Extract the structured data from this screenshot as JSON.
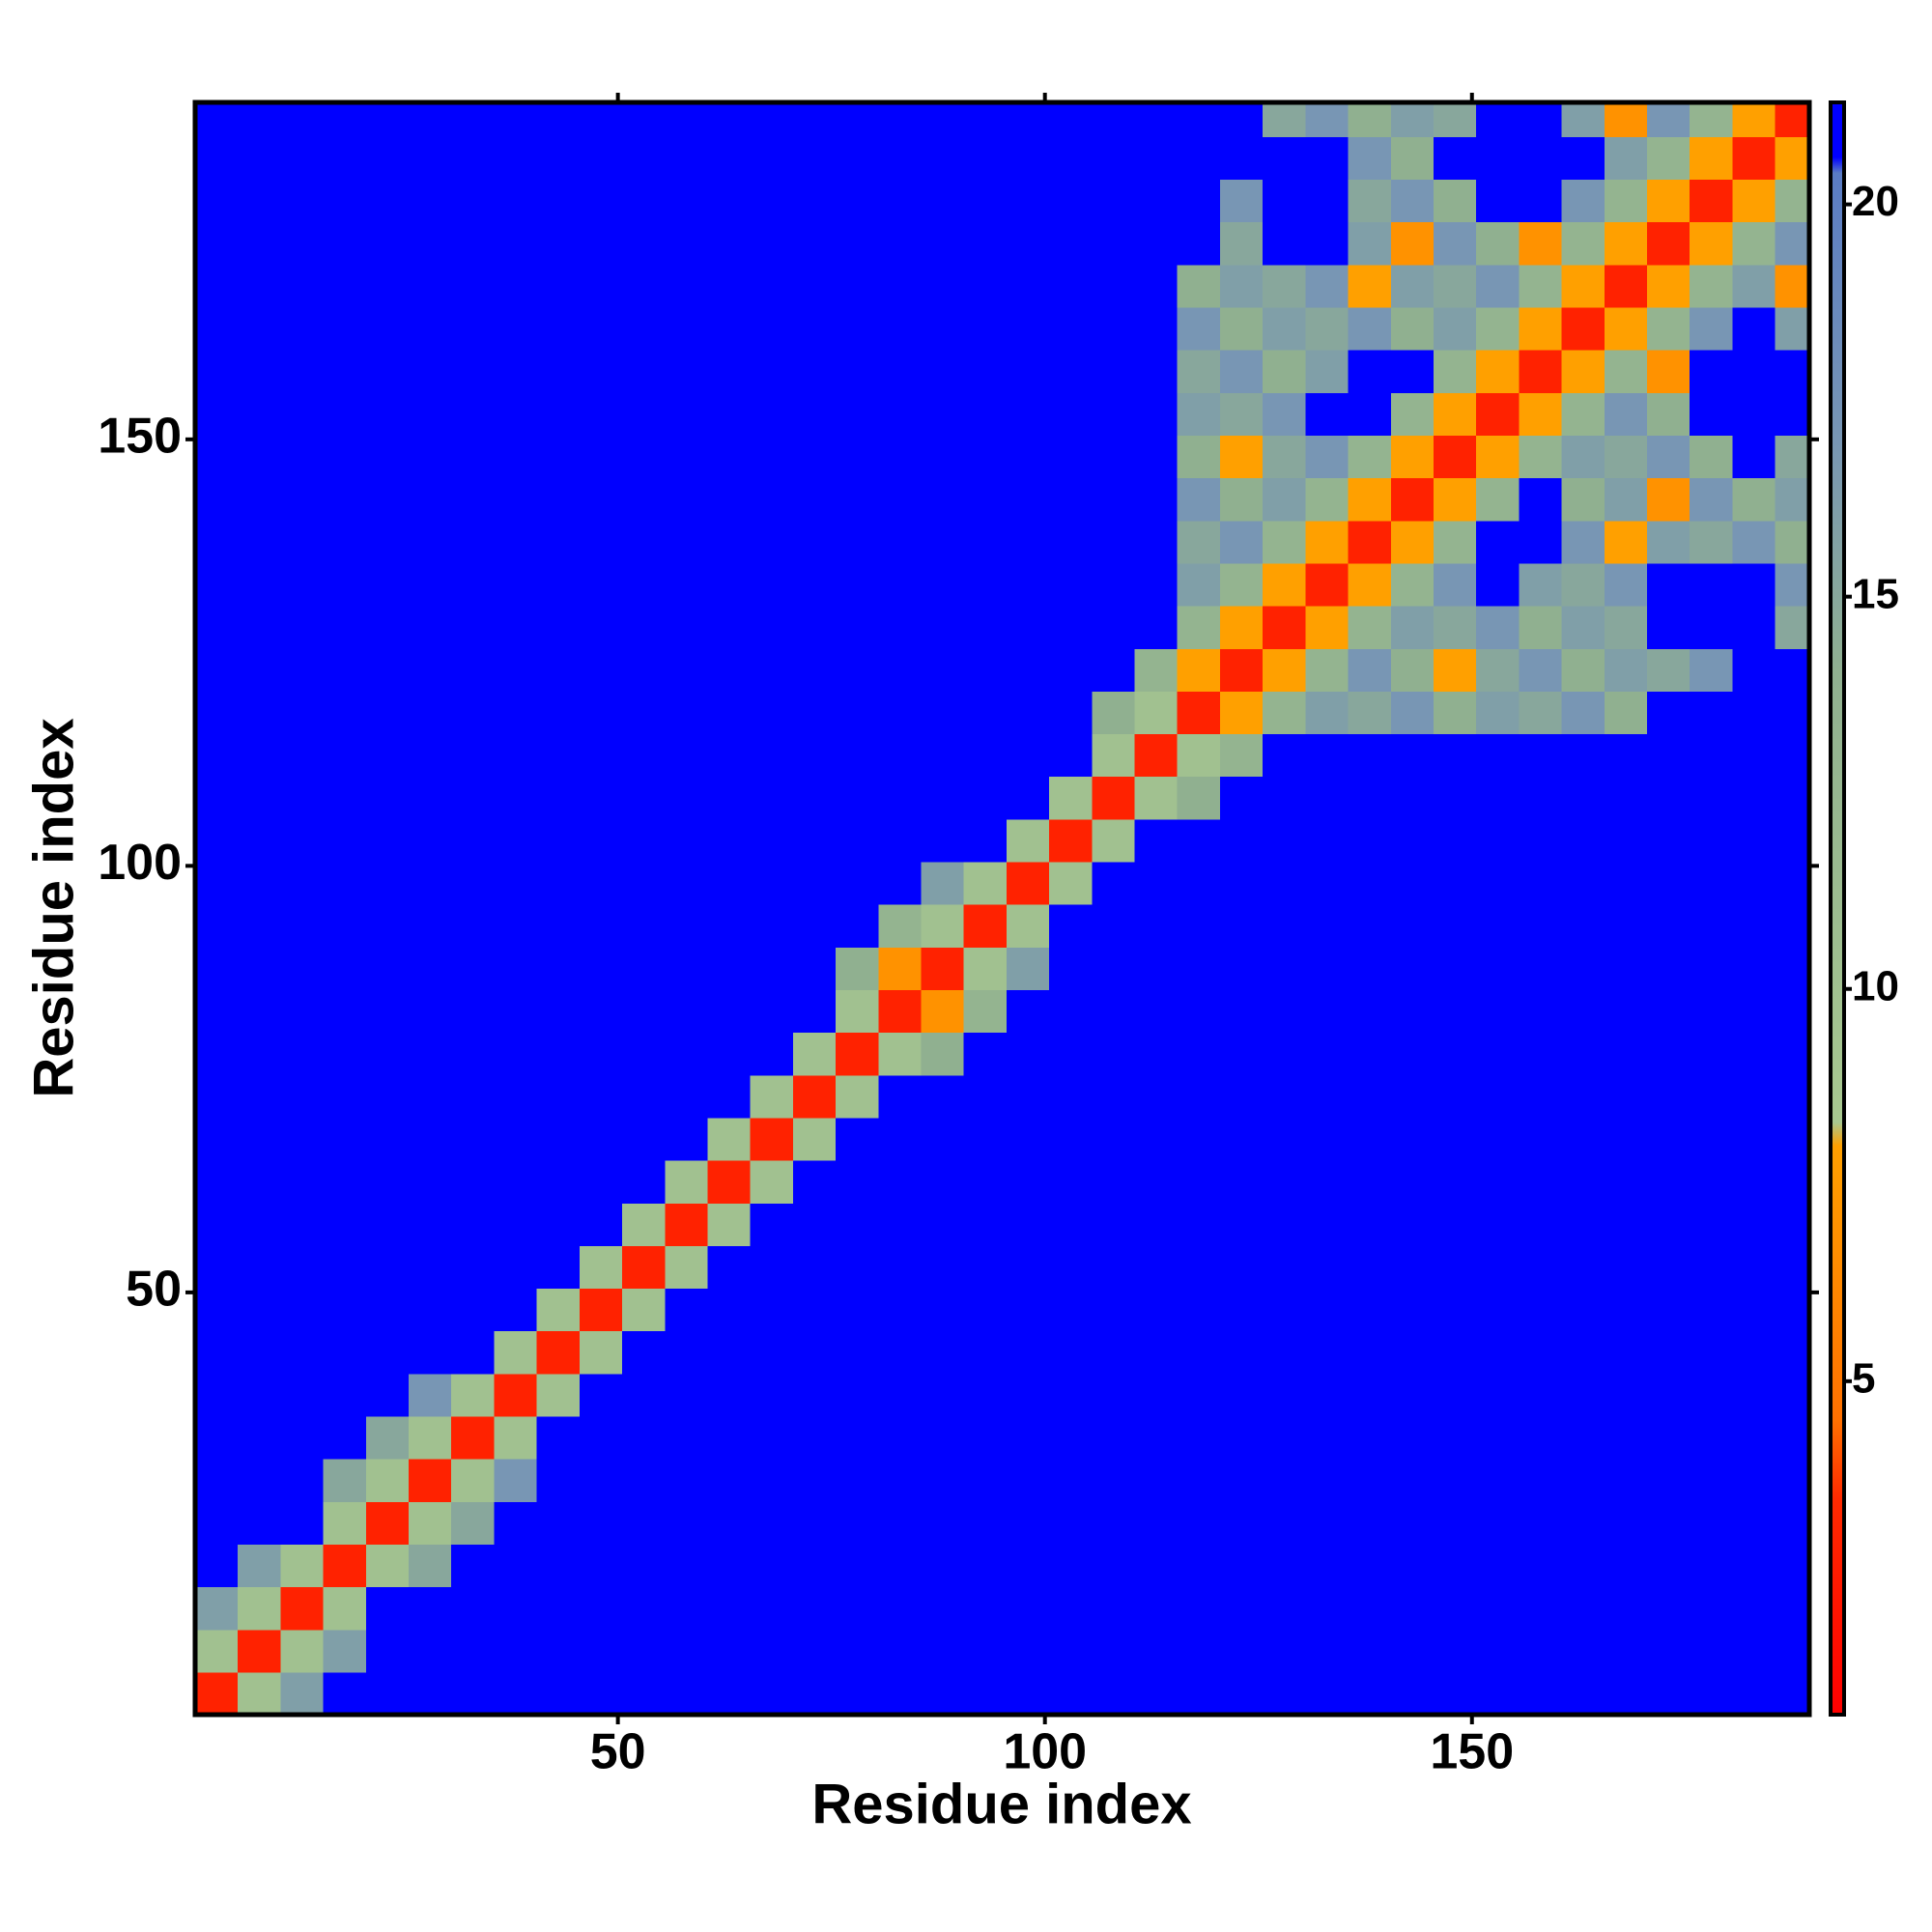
{
  "chart_data": {
    "type": "heatmap",
    "x_label": "Residue index",
    "y_label": "Residue index",
    "xlim": [
      0.5,
      189.5
    ],
    "ylim": [
      0.5,
      189.5
    ],
    "xticks": [
      50,
      100,
      150
    ],
    "yticks": [
      50,
      100,
      150
    ],
    "xbins": [
      0.5,
      5.5,
      10.5,
      15.5,
      20.5,
      25.5,
      30.5,
      35.5,
      40.5,
      45.5,
      50.5,
      55.5,
      60.5,
      65.5,
      70.5,
      75.5,
      80.5,
      85.5,
      90.5,
      95.5,
      100.5,
      105.5,
      110.5,
      115.5,
      120.5,
      125.5,
      130.5,
      135.5,
      140.5,
      145.5,
      150.5,
      155.5,
      160.5,
      165.5,
      170.5,
      175.5,
      180.5,
      185.5,
      189.5
    ],
    "ybins": [
      0.5,
      5.5,
      10.5,
      15.5,
      20.5,
      25.5,
      30.5,
      35.5,
      40.5,
      45.5,
      50.5,
      55.5,
      60.5,
      65.5,
      70.5,
      75.5,
      80.5,
      85.5,
      90.5,
      95.5,
      100.5,
      105.5,
      110.5,
      115.5,
      120.5,
      125.5,
      130.5,
      135.5,
      140.5,
      145.5,
      150.5,
      155.5,
      160.5,
      165.5,
      170.5,
      175.5,
      180.5,
      185.5,
      189.5
    ],
    "zlim": [
      0.75,
      21.3
    ],
    "zticks": [
      5,
      10,
      15,
      20
    ],
    "colorscale": [
      [
        0.75,
        "#ff0000"
      ],
      [
        3.5,
        "#ff2a00"
      ],
      [
        4.5,
        "#ff7000"
      ],
      [
        8,
        "#ffa000"
      ],
      [
        8.3,
        "#a8c890"
      ],
      [
        14,
        "#90b090"
      ],
      [
        17,
        "#7896b4"
      ],
      [
        20.4,
        "#5a7cc4"
      ],
      [
        20.6,
        "#0000ff"
      ],
      [
        21.3,
        "#0000ff"
      ]
    ],
    "values": [
      [
        3,
        10,
        16,
        21,
        21,
        21,
        21,
        21,
        21,
        21,
        21,
        21,
        21,
        21,
        21,
        21,
        21,
        21,
        21,
        21,
        21,
        21,
        21,
        21,
        21,
        21,
        21,
        21,
        21,
        21,
        21,
        21,
        21,
        21,
        21,
        21,
        21,
        21
      ],
      [
        10,
        3,
        10,
        16,
        21,
        21,
        21,
        21,
        21,
        21,
        21,
        21,
        21,
        21,
        21,
        21,
        21,
        21,
        21,
        21,
        21,
        21,
        21,
        21,
        21,
        21,
        21,
        21,
        21,
        21,
        21,
        21,
        21,
        21,
        21,
        21,
        21,
        21
      ],
      [
        16,
        10,
        3,
        10,
        21,
        21,
        21,
        21,
        21,
        21,
        21,
        21,
        21,
        21,
        21,
        21,
        21,
        21,
        21,
        21,
        21,
        21,
        21,
        21,
        21,
        21,
        21,
        21,
        21,
        21,
        21,
        21,
        21,
        21,
        21,
        21,
        21,
        21
      ],
      [
        21,
        16,
        10,
        3,
        10,
        15,
        21,
        21,
        21,
        21,
        21,
        21,
        21,
        21,
        21,
        21,
        21,
        21,
        21,
        21,
        21,
        21,
        21,
        21,
        21,
        21,
        21,
        21,
        21,
        21,
        21,
        21,
        21,
        21,
        21,
        21,
        21,
        21
      ],
      [
        21,
        21,
        21,
        10,
        3,
        10,
        15,
        21,
        21,
        21,
        21,
        21,
        21,
        21,
        21,
        21,
        21,
        21,
        21,
        21,
        21,
        21,
        21,
        21,
        21,
        21,
        21,
        21,
        21,
        21,
        21,
        21,
        21,
        21,
        21,
        21,
        21,
        21
      ],
      [
        21,
        21,
        21,
        15,
        10,
        3,
        10,
        17,
        21,
        21,
        21,
        21,
        21,
        21,
        21,
        21,
        21,
        21,
        21,
        21,
        21,
        21,
        21,
        21,
        21,
        21,
        21,
        21,
        21,
        21,
        21,
        21,
        21,
        21,
        21,
        21,
        21,
        21
      ],
      [
        21,
        21,
        21,
        21,
        15,
        10,
        3,
        10,
        21,
        21,
        21,
        21,
        21,
        21,
        21,
        21,
        21,
        21,
        21,
        21,
        21,
        21,
        21,
        21,
        21,
        21,
        21,
        21,
        21,
        21,
        21,
        21,
        21,
        21,
        21,
        21,
        21,
        21
      ],
      [
        21,
        21,
        21,
        21,
        21,
        17,
        10,
        3,
        10,
        21,
        21,
        21,
        21,
        21,
        21,
        21,
        21,
        21,
        21,
        21,
        21,
        21,
        21,
        21,
        21,
        21,
        21,
        21,
        21,
        21,
        21,
        21,
        21,
        21,
        21,
        21,
        21,
        21
      ],
      [
        21,
        21,
        21,
        21,
        21,
        21,
        21,
        10,
        3,
        10,
        21,
        21,
        21,
        21,
        21,
        21,
        21,
        21,
        21,
        21,
        21,
        21,
        21,
        21,
        21,
        21,
        21,
        21,
        21,
        21,
        21,
        21,
        21,
        21,
        21,
        21,
        21,
        21
      ],
      [
        21,
        21,
        21,
        21,
        21,
        21,
        21,
        21,
        10,
        3,
        10,
        21,
        21,
        21,
        21,
        21,
        21,
        21,
        21,
        21,
        21,
        21,
        21,
        21,
        21,
        21,
        21,
        21,
        21,
        21,
        21,
        21,
        21,
        21,
        21,
        21,
        21,
        21
      ],
      [
        21,
        21,
        21,
        21,
        21,
        21,
        21,
        21,
        21,
        10,
        3,
        10,
        21,
        21,
        21,
        21,
        21,
        21,
        21,
        21,
        21,
        21,
        21,
        21,
        21,
        21,
        21,
        21,
        21,
        21,
        21,
        21,
        21,
        21,
        21,
        21,
        21,
        21
      ],
      [
        21,
        21,
        21,
        21,
        21,
        21,
        21,
        21,
        21,
        21,
        10,
        3,
        10,
        21,
        21,
        21,
        21,
        21,
        21,
        21,
        21,
        21,
        21,
        21,
        21,
        21,
        21,
        21,
        21,
        21,
        21,
        21,
        21,
        21,
        21,
        21,
        21,
        21
      ],
      [
        21,
        21,
        21,
        21,
        21,
        21,
        21,
        21,
        21,
        21,
        21,
        10,
        3,
        10,
        21,
        21,
        21,
        21,
        21,
        21,
        21,
        21,
        21,
        21,
        21,
        21,
        21,
        21,
        21,
        21,
        21,
        21,
        21,
        21,
        21,
        21,
        21,
        21
      ],
      [
        21,
        21,
        21,
        21,
        21,
        21,
        21,
        21,
        21,
        21,
        21,
        21,
        10,
        3,
        10,
        21,
        21,
        21,
        21,
        21,
        21,
        21,
        21,
        21,
        21,
        21,
        21,
        21,
        21,
        21,
        21,
        21,
        21,
        21,
        21,
        21,
        21,
        21
      ],
      [
        21,
        21,
        21,
        21,
        21,
        21,
        21,
        21,
        21,
        21,
        21,
        21,
        21,
        10,
        3,
        10,
        21,
        21,
        21,
        21,
        21,
        21,
        21,
        21,
        21,
        21,
        21,
        21,
        21,
        21,
        21,
        21,
        21,
        21,
        21,
        21,
        21,
        21
      ],
      [
        21,
        21,
        21,
        21,
        21,
        21,
        21,
        21,
        21,
        21,
        21,
        21,
        21,
        21,
        10,
        3,
        10,
        14,
        21,
        21,
        21,
        21,
        21,
        21,
        21,
        21,
        21,
        21,
        21,
        21,
        21,
        21,
        21,
        21,
        21,
        21,
        21,
        21
      ],
      [
        21,
        21,
        21,
        21,
        21,
        21,
        21,
        21,
        21,
        21,
        21,
        21,
        21,
        21,
        21,
        10,
        3,
        7,
        13,
        21,
        21,
        21,
        21,
        21,
        21,
        21,
        21,
        21,
        21,
        21,
        21,
        21,
        21,
        21,
        21,
        21,
        21,
        21
      ],
      [
        21,
        21,
        21,
        21,
        21,
        21,
        21,
        21,
        21,
        21,
        21,
        21,
        21,
        21,
        21,
        14,
        7,
        3,
        10,
        16,
        21,
        21,
        21,
        21,
        21,
        21,
        21,
        21,
        21,
        21,
        21,
        21,
        21,
        21,
        21,
        21,
        21,
        21
      ],
      [
        21,
        21,
        21,
        21,
        21,
        21,
        21,
        21,
        21,
        21,
        21,
        21,
        21,
        21,
        21,
        21,
        13,
        10,
        3,
        10,
        21,
        21,
        21,
        21,
        21,
        21,
        21,
        21,
        21,
        21,
        21,
        21,
        21,
        21,
        21,
        21,
        21,
        21
      ],
      [
        21,
        21,
        21,
        21,
        21,
        21,
        21,
        21,
        21,
        21,
        21,
        21,
        21,
        21,
        21,
        21,
        21,
        16,
        10,
        3,
        10,
        21,
        21,
        21,
        21,
        21,
        21,
        21,
        21,
        21,
        21,
        21,
        21,
        21,
        21,
        21,
        21,
        21
      ],
      [
        21,
        21,
        21,
        21,
        21,
        21,
        21,
        21,
        21,
        21,
        21,
        21,
        21,
        21,
        21,
        21,
        21,
        21,
        21,
        10,
        3,
        10,
        21,
        21,
        21,
        21,
        21,
        21,
        21,
        21,
        21,
        21,
        21,
        21,
        21,
        21,
        21,
        21
      ],
      [
        21,
        21,
        21,
        21,
        21,
        21,
        21,
        21,
        21,
        21,
        21,
        21,
        21,
        21,
        21,
        21,
        21,
        21,
        21,
        21,
        10,
        3,
        10,
        14,
        21,
        21,
        21,
        21,
        21,
        21,
        21,
        21,
        21,
        21,
        21,
        21,
        21,
        21
      ],
      [
        21,
        21,
        21,
        21,
        21,
        21,
        21,
        21,
        21,
        21,
        21,
        21,
        21,
        21,
        21,
        21,
        21,
        21,
        21,
        21,
        21,
        10,
        3,
        10,
        13,
        21,
        21,
        21,
        21,
        21,
        21,
        21,
        21,
        21,
        21,
        21,
        21,
        21
      ],
      [
        21,
        21,
        21,
        21,
        21,
        21,
        21,
        21,
        21,
        21,
        21,
        21,
        21,
        21,
        21,
        21,
        21,
        21,
        21,
        21,
        21,
        14,
        10,
        3,
        8,
        13,
        16,
        15,
        17,
        14,
        16,
        15,
        17,
        14,
        21,
        21,
        21,
        21
      ],
      [
        21,
        21,
        21,
        21,
        21,
        21,
        21,
        21,
        21,
        21,
        21,
        21,
        21,
        21,
        21,
        21,
        21,
        21,
        21,
        21,
        21,
        21,
        13,
        8,
        3,
        8,
        13,
        17,
        14,
        8,
        15,
        17,
        14,
        16,
        15,
        17,
        21,
        21
      ],
      [
        21,
        21,
        21,
        21,
        21,
        21,
        21,
        21,
        21,
        21,
        21,
        21,
        21,
        21,
        21,
        21,
        21,
        21,
        21,
        21,
        21,
        21,
        21,
        13,
        8,
        3,
        8,
        13,
        16,
        15,
        17,
        14,
        16,
        15,
        21,
        21,
        21,
        15
      ],
      [
        21,
        21,
        21,
        21,
        21,
        21,
        21,
        21,
        21,
        21,
        21,
        21,
        21,
        21,
        21,
        21,
        21,
        21,
        21,
        21,
        21,
        21,
        21,
        16,
        13,
        8,
        3,
        8,
        13,
        17,
        21,
        16,
        15,
        17,
        21,
        21,
        21,
        17
      ],
      [
        21,
        21,
        21,
        21,
        21,
        21,
        21,
        21,
        21,
        21,
        21,
        21,
        21,
        21,
        21,
        21,
        21,
        21,
        21,
        21,
        21,
        21,
        21,
        15,
        17,
        13,
        8,
        3,
        8,
        13,
        21,
        21,
        17,
        8,
        16,
        15,
        17,
        14
      ],
      [
        21,
        21,
        21,
        21,
        21,
        21,
        21,
        21,
        21,
        21,
        21,
        21,
        21,
        21,
        21,
        21,
        21,
        21,
        21,
        21,
        21,
        21,
        21,
        17,
        14,
        16,
        13,
        8,
        3,
        8,
        13,
        21,
        14,
        16,
        7,
        17,
        14,
        16
      ],
      [
        21,
        21,
        21,
        21,
        21,
        21,
        21,
        21,
        21,
        21,
        21,
        21,
        21,
        21,
        21,
        21,
        21,
        21,
        21,
        21,
        21,
        21,
        21,
        14,
        8,
        15,
        17,
        13,
        8,
        3,
        8,
        13,
        16,
        15,
        17,
        14,
        21,
        15
      ],
      [
        21,
        21,
        21,
        21,
        21,
        21,
        21,
        21,
        21,
        21,
        21,
        21,
        21,
        21,
        21,
        21,
        21,
        21,
        21,
        21,
        21,
        21,
        21,
        16,
        15,
        17,
        21,
        21,
        13,
        8,
        3,
        8,
        13,
        17,
        14,
        21,
        21,
        21
      ],
      [
        21,
        21,
        21,
        21,
        21,
        21,
        21,
        21,
        21,
        21,
        21,
        21,
        21,
        21,
        21,
        21,
        21,
        21,
        21,
        21,
        21,
        21,
        21,
        15,
        17,
        14,
        16,
        21,
        21,
        13,
        8,
        3,
        8,
        13,
        7,
        21,
        21,
        21
      ],
      [
        21,
        21,
        21,
        21,
        21,
        21,
        21,
        21,
        21,
        21,
        21,
        21,
        21,
        21,
        21,
        21,
        21,
        21,
        21,
        21,
        21,
        21,
        21,
        17,
        14,
        16,
        15,
        17,
        14,
        16,
        13,
        8,
        3,
        8,
        13,
        17,
        21,
        16
      ],
      [
        21,
        21,
        21,
        21,
        21,
        21,
        21,
        21,
        21,
        21,
        21,
        21,
        21,
        21,
        21,
        21,
        21,
        21,
        21,
        21,
        21,
        21,
        21,
        14,
        16,
        15,
        17,
        8,
        16,
        15,
        17,
        13,
        8,
        3,
        8,
        13,
        16,
        7
      ],
      [
        21,
        21,
        21,
        21,
        21,
        21,
        21,
        21,
        21,
        21,
        21,
        21,
        21,
        21,
        21,
        21,
        21,
        21,
        21,
        21,
        21,
        21,
        21,
        21,
        15,
        21,
        21,
        16,
        7,
        17,
        14,
        7,
        13,
        8,
        3,
        8,
        13,
        17
      ],
      [
        21,
        21,
        21,
        21,
        21,
        21,
        21,
        21,
        21,
        21,
        21,
        21,
        21,
        21,
        21,
        21,
        21,
        21,
        21,
        21,
        21,
        21,
        21,
        21,
        17,
        21,
        21,
        15,
        17,
        14,
        21,
        21,
        17,
        13,
        8,
        3,
        8,
        13
      ],
      [
        21,
        21,
        21,
        21,
        21,
        21,
        21,
        21,
        21,
        21,
        21,
        21,
        21,
        21,
        21,
        21,
        21,
        21,
        21,
        21,
        21,
        21,
        21,
        21,
        21,
        21,
        21,
        17,
        14,
        21,
        21,
        21,
        21,
        16,
        13,
        8,
        3,
        8
      ],
      [
        21,
        21,
        21,
        21,
        21,
        21,
        21,
        21,
        21,
        21,
        21,
        21,
        21,
        21,
        21,
        21,
        21,
        21,
        21,
        21,
        21,
        21,
        21,
        21,
        21,
        15,
        17,
        14,
        16,
        15,
        21,
        21,
        16,
        7,
        17,
        13,
        8,
        3
      ]
    ]
  }
}
